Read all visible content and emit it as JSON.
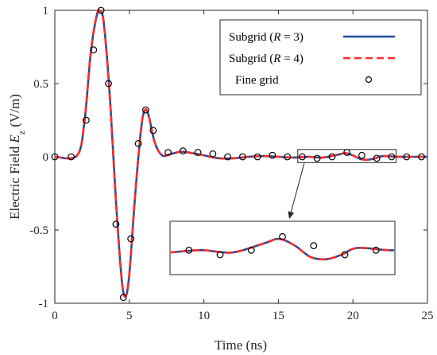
{
  "chart_data": {
    "type": "line",
    "xlabel": "Time (ns)",
    "ylabel": {
      "prefix": "Electric Field ",
      "var": "E",
      "sub": "z",
      "suffix": " (V/m)"
    },
    "xlim": [
      0,
      25
    ],
    "ylim": [
      -1,
      1
    ],
    "xticks": [
      0,
      5,
      10,
      15,
      20,
      25
    ],
    "yticks": [
      -1,
      -0.5,
      0,
      0.5,
      1
    ],
    "xtick_labels": [
      "0",
      "5",
      "10",
      "15",
      "20",
      "25"
    ],
    "ytick_labels": [
      "-1",
      "-0.5",
      "0",
      "0.5",
      "1"
    ],
    "grid": false,
    "legend_position": "top-right",
    "series": [
      {
        "name": "Subgrid (R = 3)",
        "name_parts": {
          "prefix": "Subgrid (",
          "var": "R",
          "suffix": " = 3)"
        },
        "style": "solid",
        "color": "#1f4e9c",
        "x": [
          0,
          1.5,
          2.0,
          2.4,
          2.8,
          3.05,
          3.3,
          3.7,
          4.1,
          4.5,
          4.75,
          5.0,
          5.4,
          5.8,
          6.05,
          6.3,
          6.7,
          7.2,
          7.8,
          8.5,
          9.2,
          10,
          11,
          12,
          13,
          14,
          15,
          16,
          17,
          18,
          19,
          19.5,
          20,
          20.5,
          21,
          21.5,
          22,
          23,
          24,
          25
        ],
        "y": [
          0,
          0.01,
          0.25,
          0.7,
          0.96,
          0.995,
          0.9,
          0.4,
          -0.3,
          -0.85,
          -0.95,
          -0.8,
          -0.25,
          0.2,
          0.32,
          0.28,
          0.1,
          0.01,
          0.02,
          0.035,
          0.025,
          0.01,
          -0.01,
          -0.01,
          0.0,
          0.005,
          0.0,
          -0.005,
          0.0,
          -0.005,
          0.015,
          0.025,
          0.01,
          -0.015,
          -0.02,
          -0.01,
          0.005,
          0.0,
          0.0,
          0.0
        ]
      },
      {
        "name": "Subgrid (R = 4)",
        "name_parts": {
          "prefix": "Subgrid (",
          "var": "R",
          "suffix": " = 4)"
        },
        "style": "dashed",
        "color": "#ff2a2a",
        "x": [
          0,
          1.5,
          2.0,
          2.4,
          2.8,
          3.05,
          3.3,
          3.7,
          4.1,
          4.5,
          4.75,
          5.0,
          5.4,
          5.8,
          6.05,
          6.3,
          6.7,
          7.2,
          7.8,
          8.5,
          9.2,
          10,
          11,
          12,
          13,
          14,
          15,
          16,
          17,
          18,
          19,
          19.5,
          20,
          20.5,
          21,
          21.5,
          22,
          23,
          24,
          25
        ],
        "y": [
          0,
          0.01,
          0.25,
          0.7,
          0.96,
          0.995,
          0.9,
          0.4,
          -0.3,
          -0.85,
          -0.95,
          -0.8,
          -0.25,
          0.2,
          0.32,
          0.28,
          0.1,
          0.01,
          0.02,
          0.035,
          0.025,
          0.01,
          -0.01,
          -0.01,
          0.0,
          0.005,
          0.0,
          -0.005,
          0.0,
          -0.005,
          0.015,
          0.025,
          0.01,
          -0.015,
          -0.02,
          -0.01,
          0.005,
          0.0,
          0.0,
          0.0
        ]
      },
      {
        "name": "Fine grid",
        "style": "markers",
        "color": "#000000",
        "x": [
          0,
          1.1,
          2.1,
          2.6,
          3.1,
          3.6,
          4.1,
          4.6,
          5.1,
          5.6,
          6.1,
          6.6,
          7.6,
          8.6,
          9.6,
          10.6,
          11.6,
          12.6,
          13.6,
          14.6,
          15.6,
          16.6,
          17.6,
          18.6,
          19.6,
          20.6,
          21.6,
          22.6,
          23.6,
          24.6
        ],
        "y": [
          0,
          0.0,
          0.25,
          0.73,
          1.0,
          0.5,
          -0.46,
          -0.96,
          -0.56,
          0.09,
          0.32,
          0.18,
          0.03,
          0.04,
          0.03,
          0.02,
          0.0,
          0.0,
          0.0,
          0.01,
          0.0,
          0.0,
          -0.01,
          0.0,
          0.03,
          0.01,
          -0.01,
          0.0,
          0.0,
          0.0
        ]
      }
    ],
    "zoom_region": {
      "x": [
        16.3,
        22.9
      ],
      "y": [
        -0.04,
        0.05
      ]
    }
  }
}
